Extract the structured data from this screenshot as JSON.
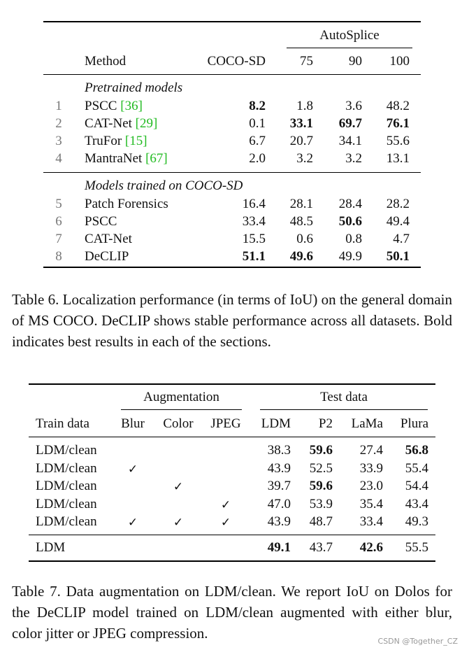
{
  "table6": {
    "header": {
      "method": "Method",
      "coco_sd": "COCO-SD",
      "autosplice": "AutoSplice",
      "q75": "75",
      "q90": "90",
      "q100": "100"
    },
    "sections": [
      {
        "title": "Pretrained models",
        "rows": [
          {
            "idx": "1",
            "name": "PSCC",
            "cite": "36",
            "coco": "8.2",
            "a75": "1.8",
            "a90": "3.6",
            "a100": "48.2",
            "bold": [
              "coco"
            ]
          },
          {
            "idx": "2",
            "name": "CAT-Net",
            "cite": "29",
            "coco": "0.1",
            "a75": "33.1",
            "a90": "69.7",
            "a100": "76.1",
            "bold": [
              "a75",
              "a90",
              "a100"
            ]
          },
          {
            "idx": "3",
            "name": "TruFor",
            "cite": "15",
            "coco": "6.7",
            "a75": "20.7",
            "a90": "34.1",
            "a100": "55.6",
            "bold": []
          },
          {
            "idx": "4",
            "name": "MantraNet",
            "cite": "67",
            "coco": "2.0",
            "a75": "3.2",
            "a90": "3.2",
            "a100": "13.1",
            "bold": []
          }
        ]
      },
      {
        "title": "Models trained on COCO-SD",
        "rows": [
          {
            "idx": "5",
            "name": "Patch Forensics",
            "cite": "",
            "coco": "16.4",
            "a75": "28.1",
            "a90": "28.4",
            "a100": "28.2",
            "bold": []
          },
          {
            "idx": "6",
            "name": "PSCC",
            "cite": "",
            "coco": "33.4",
            "a75": "48.5",
            "a90": "50.6",
            "a100": "49.4",
            "bold": [
              "a90"
            ]
          },
          {
            "idx": "7",
            "name": "CAT-Net",
            "cite": "",
            "coco": "15.5",
            "a75": "0.6",
            "a90": "0.8",
            "a100": "4.7",
            "bold": []
          },
          {
            "idx": "8",
            "name": "DeCLIP",
            "cite": "",
            "coco": "51.1",
            "a75": "49.6",
            "a90": "49.9",
            "a100": "50.1",
            "bold": [
              "coco",
              "a75",
              "a100"
            ]
          }
        ]
      }
    ],
    "caption": "Table 6. Localization performance (in terms of IoU) on the general domain of MS COCO. DeCLIP shows stable performance across all datasets. Bold indicates best results in each of the sections."
  },
  "table7": {
    "header": {
      "augmentation": "Augmentation",
      "test_data": "Test data",
      "train_data": "Train data",
      "blur": "Blur",
      "color": "Color",
      "jpeg": "JPEG",
      "ldm": "LDM",
      "p2": "P2",
      "lama": "LaMa",
      "plura": "Plura"
    },
    "check_glyph": "✓",
    "rows": [
      {
        "train": "LDM/clean",
        "blur": false,
        "color": false,
        "jpeg": false,
        "ldm": "38.3",
        "p2": "59.6",
        "lama": "27.4",
        "plura": "56.8",
        "bold": [
          "p2",
          "plura"
        ]
      },
      {
        "train": "LDM/clean",
        "blur": true,
        "color": false,
        "jpeg": false,
        "ldm": "43.9",
        "p2": "52.5",
        "lama": "33.9",
        "plura": "55.4",
        "bold": []
      },
      {
        "train": "LDM/clean",
        "blur": false,
        "color": true,
        "jpeg": false,
        "ldm": "39.7",
        "p2": "59.6",
        "lama": "23.0",
        "plura": "54.4",
        "bold": [
          "p2"
        ]
      },
      {
        "train": "LDM/clean",
        "blur": false,
        "color": false,
        "jpeg": true,
        "ldm": "47.0",
        "p2": "53.9",
        "lama": "35.4",
        "plura": "43.4",
        "bold": []
      },
      {
        "train": "LDM/clean",
        "blur": true,
        "color": true,
        "jpeg": true,
        "ldm": "43.9",
        "p2": "48.7",
        "lama": "33.4",
        "plura": "49.3",
        "bold": []
      }
    ],
    "final_row": {
      "train": "LDM",
      "ldm": "49.1",
      "p2": "43.7",
      "lama": "42.6",
      "plura": "55.5",
      "bold": [
        "ldm",
        "lama"
      ]
    },
    "caption": "Table 7. Data augmentation on LDM/clean. We report IoU on Dolos for the DeCLIP model trained on LDM/clean augmented with either blur, color jitter or JPEG compression."
  },
  "watermark": "CSDN @Together_CZ"
}
